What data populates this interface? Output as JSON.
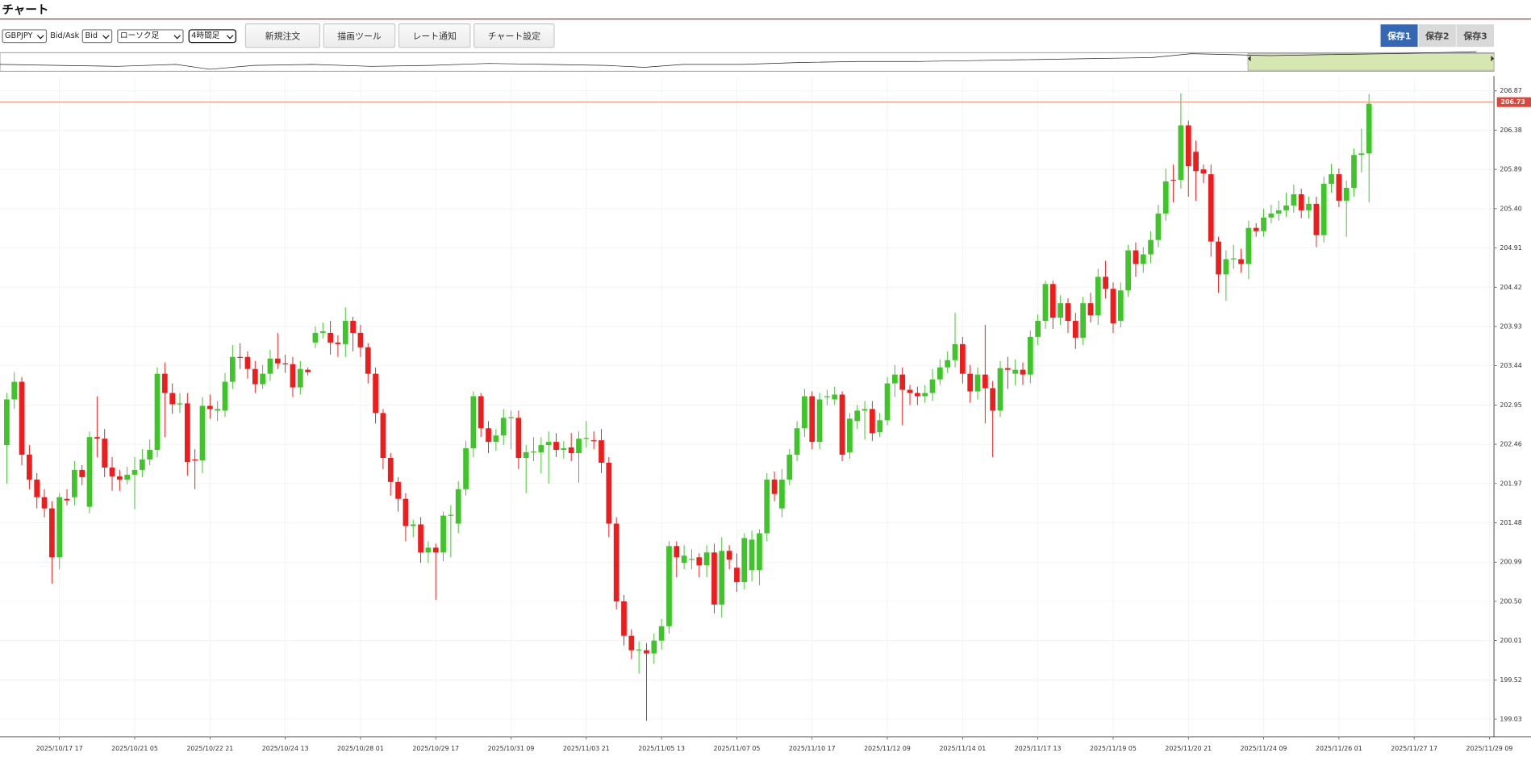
{
  "header": {
    "title": "チャート"
  },
  "toolbar": {
    "symbol": "GBPJPY",
    "price_type_label": "Bid/Ask",
    "price_type": "Bid",
    "chart_style": "ローソク足",
    "timeframe": "4時間足",
    "buttons": [
      "新規注文",
      "描画ツール",
      "レート通知",
      "チャート設定"
    ],
    "save_slots": [
      "保存1",
      "保存2",
      "保存3"
    ]
  },
  "chart_data": {
    "type": "candlestick",
    "up_color": "#3fc52a",
    "down_color": "#ee1c1c",
    "grid": true,
    "ylim": [
      198.81,
      207.03
    ],
    "yticks": [
      206.87,
      206.38,
      205.89,
      {
        "value": 205.4,
        "label": "205.40"
      },
      204.91,
      204.42,
      203.93,
      203.44,
      202.95,
      202.46,
      201.97,
      201.48,
      200.99,
      {
        "value": 200.5,
        "label": "200.50"
      },
      200.01,
      199.52,
      199.03
    ],
    "xlim": [
      -0.9,
      197.6
    ],
    "xticks": [
      {
        "value": 7,
        "label": "2025/10/17 17"
      },
      {
        "value": 17,
        "label": "2025/10/21 05"
      },
      {
        "value": 27,
        "label": "2025/10/22 21"
      },
      {
        "value": 37,
        "label": "2025/10/24 13"
      },
      {
        "value": 47,
        "label": "2025/10/28 01"
      },
      {
        "value": 57,
        "label": "2025/10/29 17"
      },
      {
        "value": 67,
        "label": "2025/10/31 09"
      },
      {
        "value": 77,
        "label": "2025/11/03 21"
      },
      {
        "value": 87,
        "label": "2025/11/05 13"
      },
      {
        "value": 97,
        "label": "2025/11/07 05"
      },
      {
        "value": 107,
        "label": "2025/11/10 17"
      },
      {
        "value": 117,
        "label": "2025/11/12 09"
      },
      {
        "value": 127,
        "label": "2025/11/14 01"
      },
      {
        "value": 137,
        "label": "2025/11/17 13"
      },
      {
        "value": 147,
        "label": "2025/11/19 05"
      },
      {
        "value": 157,
        "label": "2025/11/20 21"
      },
      {
        "value": 167,
        "label": "2025/11/24 09"
      },
      {
        "value": 177,
        "label": "2025/11/26 01"
      },
      {
        "value": 187,
        "label": "2025/11/27 17"
      },
      {
        "value": 197,
        "label": "2025/11/29 09"
      }
    ],
    "current_price": {
      "value": 206.73,
      "label": "206.73",
      "color": "#d9483b"
    },
    "open": [
      202.45,
      203.02,
      203.24,
      202.33,
      202.02,
      201.8,
      201.66,
      201.05,
      201.78,
      201.8,
      202.14,
      201.68,
      202.55,
      202.53,
      202.17,
      202.06,
      202.02,
      202.08,
      202.14,
      202.27,
      202.39,
      203.34,
      203.1,
      202.96,
      202.97,
      202.27,
      202.26,
      202.94,
      202.88,
      202.88,
      203.24,
      203.55,
      203.55,
      203.4,
      203.21,
      203.34,
      203.53,
      203.47,
      203.46,
      203.17,
      203.39,
      203.73,
      203.85,
      203.85,
      203.73,
      203.71,
      204.0,
      203.85,
      203.67,
      203.34,
      202.85,
      202.29,
      201.99,
      201.78,
      201.44,
      201.46,
      201.11,
      201.17,
      201.11,
      201.57,
      201.47,
      201.9,
      202.41,
      203.06,
      202.66,
      202.49,
      202.57,
      202.79,
      202.79,
      202.29,
      202.36,
      202.36,
      202.45,
      202.49,
      202.39,
      202.42,
      202.35,
      202.53,
      202.51,
      202.51,
      202.23,
      201.47,
      200.5,
      200.07,
      199.89,
      199.89,
      199.85,
      200.01,
      200.19,
      201.19,
      200.98,
      201.02,
      201.05,
      200.95,
      201.11,
      200.46,
      201.13,
      200.92,
      200.74,
      200.89,
      200.89,
      201.35,
      202.02,
      201.66,
      202.02,
      202.33,
      202.66,
      203.06,
      202.49,
      203.05,
      203.02,
      203.08,
      202.36,
      202.75,
      202.88,
      202.9,
      202.61,
      202.76,
      203.22,
      203.33,
      203.14,
      203.1,
      203.06,
      203.1,
      203.27,
      203.42,
      203.51,
      203.71,
      203.34,
      203.12,
      203.33,
      203.16,
      202.88,
      203.41,
      203.34,
      203.39,
      203.33,
      203.8,
      204.0,
      204.46,
      204.04,
      204.22,
      204.0,
      203.79,
      204.22,
      204.07,
      204.55,
      204.4,
      204.0,
      204.38,
      204.88,
      204.71,
      204.83,
      205.01,
      205.34,
      205.76,
      205.76,
      206.44,
      206.11,
      205.89,
      205.83,
      204.99,
      204.58,
      204.77,
      204.77,
      204.71,
      205.16,
      205.12,
      205.29,
      205.34,
      205.38,
      205.44,
      205.58,
      205.38,
      205.46,
      205.07,
      205.71,
      205.83,
      205.5,
      205.66,
      206.07,
      206.09
    ],
    "high": [
      203.1,
      203.36,
      203.3,
      202.45,
      202.1,
      201.9,
      201.75,
      201.85,
      201.9,
      202.25,
      202.2,
      202.62,
      203.06,
      202.65,
      202.3,
      202.14,
      202.18,
      202.3,
      202.4,
      202.52,
      203.42,
      203.48,
      203.22,
      203.1,
      203.1,
      202.4,
      203.05,
      203.08,
      203.0,
      203.35,
      203.7,
      203.72,
      203.62,
      203.5,
      203.45,
      203.64,
      203.85,
      203.58,
      203.55,
      203.5,
      203.42,
      203.93,
      203.98,
      204.0,
      203.82,
      204.17,
      204.05,
      203.95,
      203.72,
      203.42,
      202.9,
      202.35,
      202.05,
      201.85,
      201.52,
      201.55,
      201.25,
      201.22,
      201.62,
      201.7,
      202.0,
      202.5,
      203.12,
      203.1,
      202.75,
      202.65,
      202.9,
      202.88,
      202.88,
      202.45,
      202.55,
      202.55,
      202.62,
      202.6,
      202.5,
      202.6,
      202.62,
      202.75,
      202.62,
      202.65,
      202.3,
      201.55,
      200.58,
      200.15,
      200.0,
      199.98,
      200.1,
      200.28,
      201.25,
      201.25,
      201.2,
      201.15,
      201.1,
      201.2,
      201.22,
      201.3,
      201.2,
      201.1,
      201.35,
      201.38,
      201.4,
      202.1,
      202.12,
      202.15,
      202.4,
      202.75,
      203.15,
      203.12,
      203.1,
      203.14,
      203.18,
      203.12,
      202.85,
      202.95,
      203.0,
      203.0,
      202.85,
      203.3,
      203.45,
      203.42,
      203.2,
      203.18,
      203.2,
      203.4,
      203.52,
      203.62,
      204.1,
      203.8,
      203.45,
      203.42,
      203.95,
      203.25,
      203.5,
      203.55,
      203.52,
      203.48,
      203.88,
      204.08,
      204.5,
      204.5,
      204.32,
      204.28,
      204.1,
      204.3,
      204.35,
      204.65,
      204.75,
      204.48,
      204.48,
      204.95,
      204.98,
      204.92,
      205.12,
      205.45,
      205.9,
      205.95,
      206.84,
      206.5,
      206.25,
      205.95,
      205.95,
      205.05,
      204.88,
      204.95,
      204.9,
      205.25,
      205.22,
      205.4,
      205.45,
      205.5,
      205.6,
      205.7,
      205.65,
      205.55,
      205.55,
      205.8,
      205.96,
      205.9,
      205.75,
      206.15,
      206.4,
      206.83
    ],
    "low": [
      201.97,
      202.9,
      202.2,
      201.9,
      201.66,
      201.55,
      200.72,
      200.9,
      201.7,
      201.7,
      201.95,
      201.6,
      202.3,
      202.05,
      201.88,
      201.88,
      201.96,
      201.65,
      202.05,
      202.2,
      202.3,
      202.55,
      202.84,
      202.85,
      202.07,
      201.9,
      202.1,
      202.78,
      202.75,
      202.8,
      203.15,
      203.4,
      203.28,
      203.1,
      203.15,
      203.25,
      203.4,
      203.35,
      203.05,
      203.08,
      203.32,
      203.66,
      203.78,
      203.58,
      203.55,
      203.55,
      203.62,
      203.55,
      203.22,
      202.72,
      202.15,
      201.82,
      201.62,
      201.25,
      201.3,
      200.98,
      200.98,
      200.52,
      201.0,
      201.05,
      201.35,
      201.82,
      202.3,
      202.55,
      202.35,
      202.38,
      202.45,
      202.4,
      202.15,
      201.85,
      202.25,
      202.1,
      201.97,
      202.3,
      202.28,
      202.25,
      201.98,
      202.42,
      202.4,
      202.1,
      201.3,
      200.4,
      199.95,
      199.78,
      199.6,
      199.01,
      199.72,
      199.9,
      200.1,
      200.8,
      200.9,
      200.9,
      200.8,
      200.8,
      200.35,
      200.3,
      200.9,
      200.62,
      200.65,
      200.75,
      200.7,
      201.25,
      201.75,
      201.55,
      201.95,
      202.25,
      202.55,
      202.4,
      202.4,
      202.95,
      202.95,
      202.25,
      202.28,
      202.65,
      202.52,
      202.5,
      202.55,
      202.7,
      203.05,
      202.7,
      202.95,
      202.95,
      202.98,
      203.0,
      203.2,
      203.35,
      203.42,
      203.22,
      202.98,
      203.02,
      202.72,
      202.3,
      202.8,
      203.15,
      203.2,
      203.2,
      203.22,
      203.7,
      203.9,
      203.9,
      203.95,
      203.85,
      203.65,
      203.7,
      203.98,
      203.95,
      204.28,
      203.85,
      203.92,
      204.3,
      204.55,
      204.6,
      204.72,
      204.92,
      205.25,
      205.48,
      205.65,
      205.55,
      205.5,
      205.72,
      204.8,
      204.35,
      204.25,
      204.65,
      204.6,
      204.52,
      205.05,
      205.05,
      205.22,
      205.25,
      205.3,
      205.35,
      205.28,
      205.28,
      204.92,
      204.98,
      205.6,
      205.42,
      205.05,
      205.55,
      205.85,
      205.48
    ],
    "close": [
      203.02,
      203.24,
      202.33,
      202.02,
      201.8,
      201.66,
      201.05,
      201.8,
      201.76,
      202.14,
      202.05,
      202.55,
      202.53,
      202.17,
      202.06,
      202.02,
      202.08,
      202.14,
      202.27,
      202.39,
      203.34,
      203.1,
      202.96,
      202.97,
      202.24,
      202.26,
      202.94,
      202.9,
      202.9,
      203.24,
      203.55,
      203.54,
      203.4,
      203.21,
      203.34,
      203.53,
      203.47,
      203.46,
      203.17,
      203.4,
      203.36,
      203.85,
      203.87,
      203.73,
      203.71,
      204.0,
      203.85,
      203.67,
      203.34,
      202.85,
      202.29,
      201.99,
      201.78,
      201.44,
      201.46,
      201.11,
      201.17,
      201.11,
      201.57,
      201.58,
      201.9,
      202.41,
      203.06,
      202.66,
      202.49,
      202.57,
      202.79,
      202.8,
      202.29,
      202.36,
      202.37,
      202.45,
      202.49,
      202.39,
      202.41,
      202.35,
      202.53,
      202.54,
      202.5,
      202.23,
      201.47,
      200.5,
      200.07,
      199.89,
      199.9,
      199.85,
      200.01,
      200.19,
      201.19,
      201.05,
      201.07,
      201.03,
      200.95,
      201.11,
      200.46,
      201.13,
      201.02,
      200.74,
      201.29,
      201.27,
      201.35,
      202.02,
      201.84,
      202.02,
      202.33,
      202.66,
      203.06,
      202.49,
      203.02,
      203.06,
      203.08,
      202.33,
      202.78,
      202.88,
      202.9,
      202.6,
      202.76,
      203.22,
      203.33,
      203.14,
      203.1,
      203.06,
      203.1,
      203.27,
      203.42,
      203.51,
      203.71,
      203.34,
      203.12,
      203.33,
      203.16,
      202.88,
      203.41,
      203.39,
      203.39,
      203.33,
      203.8,
      204.0,
      204.46,
      204.04,
      204.22,
      204.0,
      203.79,
      204.22,
      204.07,
      204.55,
      204.4,
      203.97,
      204.38,
      204.88,
      204.71,
      204.83,
      205.01,
      205.34,
      205.74,
      205.75,
      206.44,
      205.93,
      205.87,
      205.84,
      204.99,
      204.58,
      204.77,
      204.78,
      204.71,
      205.16,
      205.12,
      205.29,
      205.34,
      205.38,
      205.44,
      205.58,
      205.38,
      205.46,
      205.07,
      205.71,
      205.83,
      205.5,
      205.66,
      206.07,
      206.09,
      206.71
    ]
  }
}
